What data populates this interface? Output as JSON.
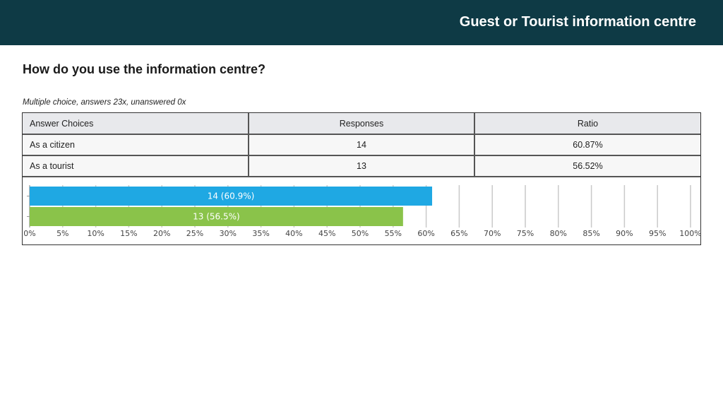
{
  "header": {
    "title": "Guest or Tourist information centre"
  },
  "question": "How do you use the information centre?",
  "subtitle": "Multiple choice, answers 23x, unanswered 0x",
  "table": {
    "headers": [
      "Answer Choices",
      "Responses",
      "Ratio"
    ],
    "rows": [
      {
        "choice": "As a citizen",
        "responses": "14",
        "ratio": "60.87%"
      },
      {
        "choice": "As a tourist",
        "responses": "13",
        "ratio": "56.52%"
      }
    ]
  },
  "chart_data": {
    "type": "bar",
    "orientation": "horizontal",
    "categories": [
      "As a citizen",
      "As a tourist"
    ],
    "values": [
      60.9,
      56.5
    ],
    "counts": [
      14,
      13
    ],
    "bar_labels": [
      "14 (60.9%)",
      "13 (56.5%)"
    ],
    "colors": [
      "#1fa8e3",
      "#8ac34a"
    ],
    "xlim": [
      0,
      100
    ],
    "x_ticks": [
      "0%",
      "5%",
      "10%",
      "15%",
      "20%",
      "25%",
      "30%",
      "35%",
      "40%",
      "45%",
      "50%",
      "55%",
      "60%",
      "65%",
      "70%",
      "75%",
      "80%",
      "85%",
      "90%",
      "95%",
      "100%"
    ],
    "grid": true
  }
}
